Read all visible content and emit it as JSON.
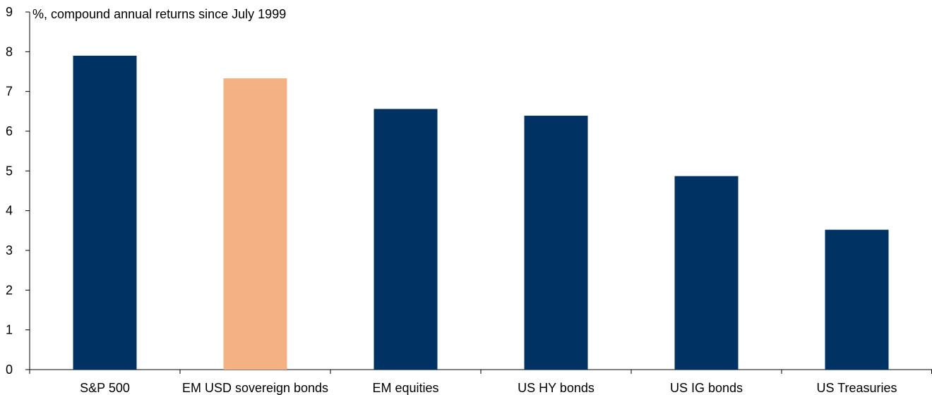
{
  "chart_data": {
    "type": "bar",
    "unit_label": "%, compound annual returns since July 1999",
    "categories": [
      "S&P 500",
      "EM USD sovereign bonds",
      "EM equities",
      "US HY bonds",
      "US IG bonds",
      "US Treasuries"
    ],
    "values": [
      7.9,
      7.33,
      6.56,
      6.39,
      4.87,
      3.52
    ],
    "bar_colors": [
      "#003263",
      "#F4B183",
      "#003263",
      "#003263",
      "#003263",
      "#003263"
    ],
    "ylim": [
      0,
      9
    ],
    "yticks": [
      0,
      1,
      2,
      3,
      4,
      5,
      6,
      7,
      8,
      9
    ],
    "grid": false,
    "legend": "none"
  }
}
